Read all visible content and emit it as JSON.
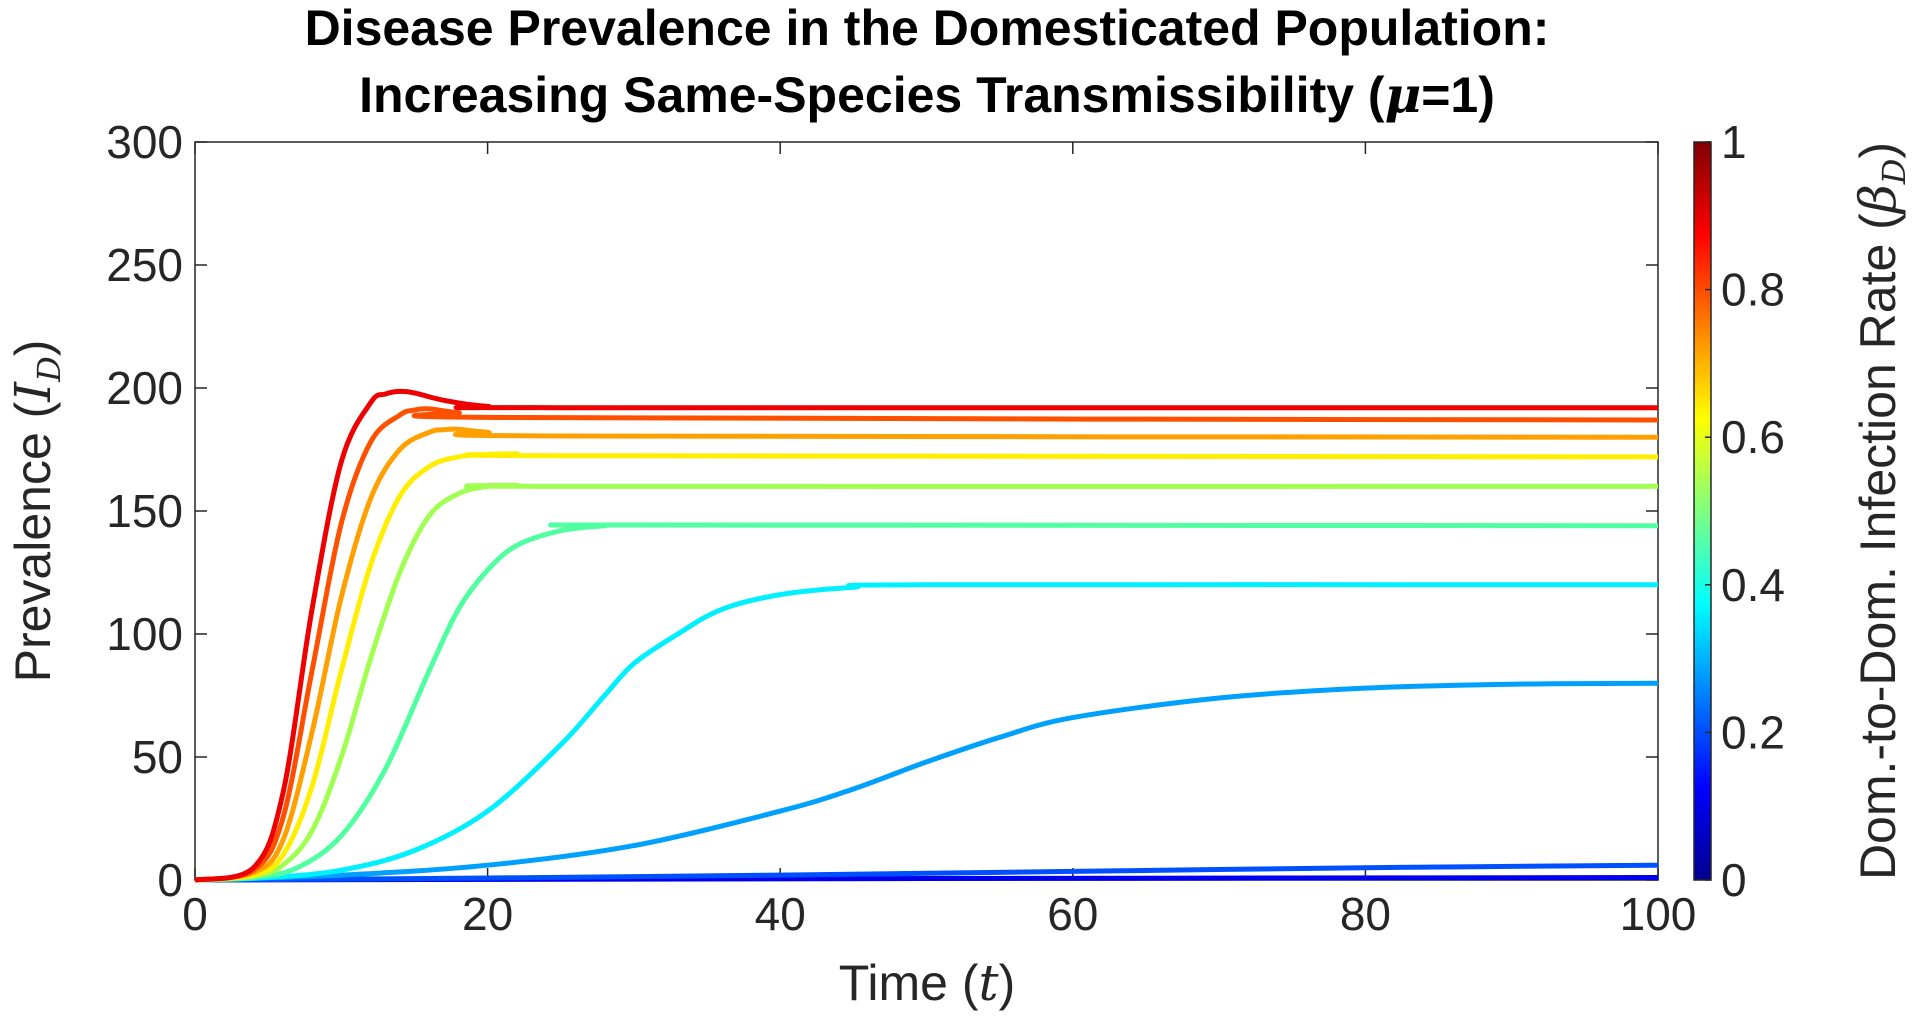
{
  "chart_data": {
    "type": "line",
    "title_line1": "Disease Prevalence in the Domesticated Population:",
    "title_line2_prefix": "Increasing Same-Species Transmissibility (",
    "title_line2_symbol": "μ",
    "title_line2_suffix": "=1)",
    "xlabel_prefix": "Time (",
    "xlabel_symbol": "t",
    "xlabel_suffix": ")",
    "ylabel_prefix": "Prevalence (",
    "ylabel_symbol": "I",
    "ylabel_subscript": "D",
    "ylabel_suffix": ")",
    "xlim": [
      0,
      100
    ],
    "ylim": [
      0,
      300
    ],
    "xticks": [
      0,
      20,
      40,
      60,
      80,
      100
    ],
    "yticks": [
      0,
      50,
      100,
      150,
      200,
      250,
      300
    ],
    "colorbar": {
      "label_prefix": "Dom.-to-Dom. Infection Rate (",
      "label_symbol": "β",
      "label_subscript": "D",
      "label_suffix": ")",
      "range": [
        0,
        1
      ],
      "ticks": [
        0,
        0.2,
        0.4,
        0.6,
        0.8,
        1
      ],
      "tick_labels": [
        "0",
        "0.2",
        "0.4",
        "0.6",
        "0.8",
        "1"
      ],
      "colormap": "jet"
    },
    "series": [
      {
        "beta": 0.1,
        "color": "#0000ef",
        "points": [
          [
            0,
            0
          ],
          [
            25,
            0.3
          ],
          [
            50,
            0.6
          ],
          [
            75,
            0.8
          ],
          [
            100,
            1
          ]
        ]
      },
      {
        "beta": 0.2,
        "color": "#0050ff",
        "points": [
          [
            0,
            0
          ],
          [
            20,
            0.8
          ],
          [
            40,
            2
          ],
          [
            60,
            3.5
          ],
          [
            80,
            5
          ],
          [
            100,
            6
          ]
        ]
      },
      {
        "beta": 0.3,
        "color": "#00a0ff",
        "points": [
          [
            0,
            0
          ],
          [
            10,
            2
          ],
          [
            20,
            6
          ],
          [
            30,
            14
          ],
          [
            40,
            28
          ],
          [
            45,
            37
          ],
          [
            50,
            48
          ],
          [
            55,
            58
          ],
          [
            60,
            66
          ],
          [
            70,
            74
          ],
          [
            80,
            78
          ],
          [
            90,
            79.6
          ],
          [
            100,
            80
          ]
        ]
      },
      {
        "beta": 0.4,
        "color": "#00f0ff",
        "points": [
          [
            0,
            0
          ],
          [
            5,
            1
          ],
          [
            10,
            4
          ],
          [
            15,
            12
          ],
          [
            20,
            28
          ],
          [
            25,
            55
          ],
          [
            28,
            75
          ],
          [
            30,
            88
          ],
          [
            33,
            100
          ],
          [
            36,
            110
          ],
          [
            40,
            116
          ],
          [
            45,
            119
          ],
          [
            50,
            120
          ],
          [
            100,
            120
          ]
        ]
      },
      {
        "beta": 0.5,
        "color": "#50ff9f",
        "points": [
          [
            0,
            0
          ],
          [
            4,
            1
          ],
          [
            7,
            5
          ],
          [
            10,
            18
          ],
          [
            13,
            45
          ],
          [
            16,
            85
          ],
          [
            18,
            110
          ],
          [
            20,
            126
          ],
          [
            22,
            136
          ],
          [
            25,
            142
          ],
          [
            28,
            144
          ],
          [
            30,
            144.3
          ],
          [
            100,
            144
          ]
        ]
      },
      {
        "beta": 0.6,
        "color": "#a0ff50",
        "points": [
          [
            0,
            0
          ],
          [
            4,
            1.5
          ],
          [
            6,
            6
          ],
          [
            8,
            20
          ],
          [
            10,
            50
          ],
          [
            12,
            90
          ],
          [
            14,
            125
          ],
          [
            16,
            148
          ],
          [
            18,
            157
          ],
          [
            20,
            160
          ],
          [
            22,
            160.5
          ],
          [
            25,
            160
          ],
          [
            100,
            160
          ]
        ]
      },
      {
        "beta": 0.7,
        "color": "#ffee00",
        "points": [
          [
            0,
            0
          ],
          [
            4,
            2
          ],
          [
            6,
            10
          ],
          [
            8,
            38
          ],
          [
            10,
            85
          ],
          [
            12,
            128
          ],
          [
            14,
            156
          ],
          [
            16,
            168
          ],
          [
            18,
            172
          ],
          [
            20,
            173
          ],
          [
            22,
            173.2
          ],
          [
            25,
            172.5
          ],
          [
            100,
            172
          ]
        ]
      },
      {
        "beta": 0.8,
        "color": "#ffa000",
        "points": [
          [
            0,
            0
          ],
          [
            4,
            3
          ],
          [
            6,
            16
          ],
          [
            8,
            60
          ],
          [
            10,
            115
          ],
          [
            12,
            155
          ],
          [
            14,
            175
          ],
          [
            16,
            182
          ],
          [
            17,
            183
          ],
          [
            18,
            183.2
          ],
          [
            20,
            182
          ],
          [
            25,
            180.5
          ],
          [
            100,
            180
          ]
        ]
      },
      {
        "beta": 0.9,
        "color": "#ff5000",
        "points": [
          [
            0,
            0
          ],
          [
            4,
            4
          ],
          [
            6,
            25
          ],
          [
            8,
            85
          ],
          [
            10,
            145
          ],
          [
            12,
            178
          ],
          [
            14,
            189
          ],
          [
            15,
            191
          ],
          [
            16,
            191.5
          ],
          [
            18,
            190
          ],
          [
            22,
            188
          ],
          [
            100,
            187
          ]
        ]
      },
      {
        "beta": 1.0,
        "color": "#ee0000",
        "points": [
          [
            0,
            0
          ],
          [
            4,
            5
          ],
          [
            6,
            35
          ],
          [
            8,
            110
          ],
          [
            10,
            170
          ],
          [
            12,
            194
          ],
          [
            13,
            197.5
          ],
          [
            14,
            198.6
          ],
          [
            15,
            198
          ],
          [
            17,
            195
          ],
          [
            20,
            192.5
          ],
          [
            25,
            192
          ],
          [
            100,
            192
          ]
        ]
      }
    ]
  }
}
